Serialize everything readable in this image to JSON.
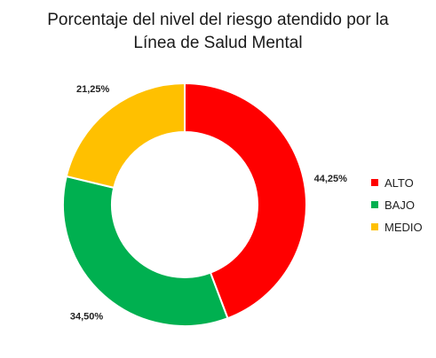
{
  "chart_data": {
    "type": "donut",
    "title_lines": [
      "Porcentaje del nivel del riesgo atendido por la",
      "Línea de Salud Mental"
    ],
    "categories": [
      "ALTO",
      "BAJO",
      "MEDIO"
    ],
    "values": [
      44.25,
      34.5,
      21.25
    ],
    "data_labels": [
      "44,25%",
      "34,50%",
      "21,25%"
    ],
    "colors": [
      "#ff0000",
      "#00b050",
      "#ffc000"
    ],
    "legend_position": "right",
    "unit": "%"
  }
}
